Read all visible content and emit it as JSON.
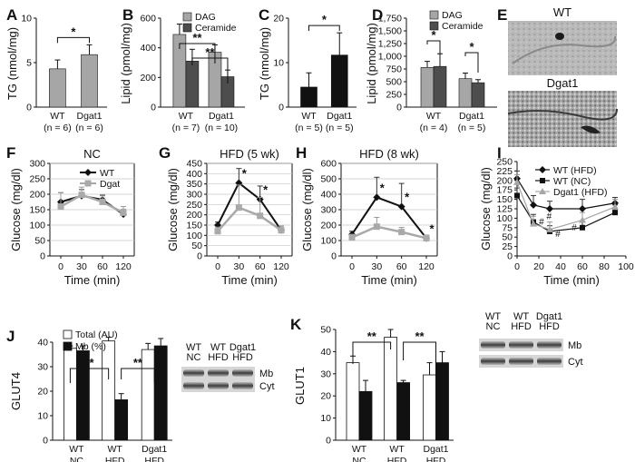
{
  "colors": {
    "gray": "#a6a6a6",
    "dark": "#4d4d4d",
    "black": "#111111",
    "white": "#ffffff",
    "line_gray": "#a9a9a9"
  },
  "panels": {
    "A": {
      "label": "A",
      "ylabel": "TG (nmol/mg)",
      "yticks": [
        "0",
        "5",
        "10"
      ],
      "categories": [
        [
          "WT",
          "(n = 6)"
        ],
        [
          "Dgat1",
          "(n = 6)"
        ]
      ],
      "sig": "*"
    },
    "B": {
      "label": "B",
      "ylabel": "Lipid (pmol/mg)",
      "yticks": [
        "0",
        "200",
        "400",
        "600"
      ],
      "categories": [
        [
          "WT",
          "(n = 7)"
        ],
        [
          "Dgat1",
          "(n = 10)"
        ]
      ],
      "legend": [
        "DAG",
        "Ceramide"
      ],
      "sig": [
        "**",
        "**"
      ]
    },
    "C": {
      "label": "C",
      "ylabel": "TG (nmol/mg)",
      "yticks": [
        "0",
        "10",
        "20"
      ],
      "categories": [
        [
          "WT",
          "(n = 5)"
        ],
        [
          "Dgat1",
          "(n = 5)"
        ]
      ],
      "sig": "*"
    },
    "D": {
      "label": "D",
      "ylabel": "Lipid (pmol/mg)",
      "yticks": [
        "0",
        "250",
        "500",
        "750",
        "1,000",
        "1,250",
        "1,500",
        "1,750"
      ],
      "categories": [
        [
          "WT",
          "(n = 4)"
        ],
        [
          "Dgat1",
          "(n = 5)"
        ]
      ],
      "legend": [
        "DAG",
        "Ceramide"
      ],
      "sig": [
        "*",
        "*"
      ]
    },
    "E": {
      "label": "E",
      "title_top": "WT",
      "title_bottom": "Dgat1"
    },
    "F": {
      "label": "F",
      "title": "NC",
      "ylabel": "Glucose (mg/dl)",
      "xlabel": "Time (min)",
      "yticks": [
        "0",
        "50",
        "100",
        "150",
        "200",
        "250",
        "300"
      ],
      "xticks": [
        "0",
        "30",
        "60",
        "120"
      ],
      "legend": [
        "WT",
        "Dgat"
      ]
    },
    "G": {
      "label": "G",
      "title": "HFD (5 wk)",
      "ylabel": "Glucose (mg/dl)",
      "xlabel": "Time (min)",
      "yticks": [
        "0",
        "50",
        "100",
        "150",
        "200",
        "250",
        "300",
        "350",
        "400",
        "450"
      ],
      "xticks": [
        "0",
        "30",
        "60",
        "120"
      ]
    },
    "H": {
      "label": "H",
      "title": "HFD (8 wk)",
      "ylabel": "Glucose (mg/dl)",
      "xlabel": "Time (min)",
      "yticks": [
        "0",
        "100",
        "200",
        "300",
        "400",
        "500",
        "600"
      ],
      "xticks": [
        "0",
        "30",
        "60",
        "120"
      ]
    },
    "I": {
      "label": "I",
      "ylabel": "Glucose (mg/dl)",
      "xlabel": "Time (min)",
      "yticks": [
        "0",
        "25",
        "50",
        "75",
        "100",
        "125",
        "150",
        "175",
        "200",
        "225",
        "250"
      ],
      "xticks": [
        "0",
        "20",
        "40",
        "60",
        "80",
        "100"
      ],
      "legend": [
        "WT (HFD)",
        "WT (NC)",
        "Dgat1 (HFD)"
      ],
      "sig": "#"
    },
    "J": {
      "label": "J",
      "ylabel": "GLUT4",
      "yticks": [
        "0",
        "10",
        "20",
        "30",
        "40"
      ],
      "categories": [
        [
          "WT",
          "NC"
        ],
        [
          "WT",
          "HFD"
        ],
        [
          "Dgat1",
          "HFD"
        ]
      ],
      "legend": [
        "Total (AU)",
        "Mb (%)"
      ],
      "sig": [
        "**",
        "**"
      ],
      "blot_lanes": [
        [
          "WT",
          "NC"
        ],
        [
          "WT",
          "HFD"
        ],
        [
          "Dgat1",
          "HFD"
        ]
      ],
      "blot_rows": [
        "Mb",
        "Cyt"
      ]
    },
    "K": {
      "label": "K",
      "ylabel": "GLUT1",
      "yticks": [
        "0",
        "10",
        "20",
        "30",
        "40",
        "50"
      ],
      "categories": [
        [
          "WT",
          "NC"
        ],
        [
          "WT",
          "HFD"
        ],
        [
          "Dgat1",
          "HFD"
        ]
      ],
      "sig": [
        "**",
        "**"
      ],
      "blot_lanes": [
        [
          "WT",
          "NC"
        ],
        [
          "WT",
          "HFD"
        ],
        [
          "Dgat1",
          "HFD"
        ]
      ],
      "blot_rows": [
        "Mb",
        "Cyt"
      ]
    }
  },
  "chart_data": [
    {
      "panel": "A",
      "type": "bar",
      "categories": [
        "WT",
        "Dgat1"
      ],
      "values": [
        4.3,
        5.9
      ],
      "errors": [
        1.0,
        1.1
      ],
      "ylim": [
        0,
        10
      ],
      "ylabel": "TG (nmol/mg)"
    },
    {
      "panel": "B",
      "type": "bar",
      "categories": [
        "WT",
        "Dgat1"
      ],
      "ylim": [
        0,
        600
      ],
      "ylabel": "Lipid (pmol/mg)",
      "series": [
        {
          "name": "DAG",
          "values": [
            490,
            370
          ],
          "errors": [
            70,
            50
          ]
        },
        {
          "name": "Ceramide",
          "values": [
            310,
            205
          ],
          "errors": [
            80,
            45
          ]
        }
      ]
    },
    {
      "panel": "C",
      "type": "bar",
      "categories": [
        "WT",
        "Dgat1"
      ],
      "values": [
        4.5,
        11.7
      ],
      "errors": [
        3.2,
        5.0
      ],
      "ylim": [
        0,
        20
      ],
      "ylabel": "TG (nmol/mg)"
    },
    {
      "panel": "D",
      "type": "bar",
      "categories": [
        "WT",
        "Dgat1"
      ],
      "ylim": [
        0,
        1750
      ],
      "ylabel": "Lipid (pmol/mg)",
      "series": [
        {
          "name": "DAG",
          "values": [
            780,
            560
          ],
          "errors": [
            120,
            110
          ]
        },
        {
          "name": "Ceramide",
          "values": [
            800,
            480
          ],
          "errors": [
            250,
            60
          ]
        }
      ]
    },
    {
      "panel": "F",
      "type": "line",
      "x": [
        0,
        30,
        60,
        120
      ],
      "ylim": [
        0,
        300
      ],
      "title": "NC",
      "xlabel": "Time (min)",
      "ylabel": "Glucose (mg/dl)",
      "series": [
        {
          "name": "WT",
          "values": [
            175,
            195,
            182,
            135
          ],
          "errors": [
            30,
            20,
            15,
            15
          ]
        },
        {
          "name": "Dgat",
          "values": [
            160,
            198,
            175,
            140
          ],
          "errors": [
            45,
            25,
            20,
            20
          ]
        }
      ]
    },
    {
      "panel": "G",
      "type": "line",
      "x": [
        0,
        30,
        60,
        120
      ],
      "ylim": [
        0,
        450
      ],
      "title": "HFD (5 wk)",
      "xlabel": "Time (min)",
      "ylabel": "Glucose (mg/dl)",
      "series": [
        {
          "values": [
            150,
            355,
            275,
            125
          ],
          "errors": [
            15,
            70,
            65,
            20
          ]
        },
        {
          "values": [
            120,
            235,
            195,
            125
          ],
          "errors": [
            20,
            110,
            90,
            20
          ]
        }
      ],
      "annotations": [
        "*",
        "*"
      ]
    },
    {
      "panel": "H",
      "type": "line",
      "x": [
        0,
        30,
        60,
        120
      ],
      "ylim": [
        0,
        600
      ],
      "title": "HFD (8 wk)",
      "xlabel": "Time (min)",
      "ylabel": "Glucose (mg/dl)",
      "series": [
        {
          "values": [
            140,
            380,
            320,
            115
          ],
          "errors": [
            20,
            130,
            150,
            20
          ]
        },
        {
          "values": [
            120,
            190,
            155,
            115
          ],
          "errors": [
            20,
            60,
            30,
            20
          ]
        }
      ],
      "annotations": [
        "*",
        "*",
        "*"
      ]
    },
    {
      "panel": "I",
      "type": "line",
      "xlim": [
        0,
        100
      ],
      "ylim": [
        0,
        250
      ],
      "xlabel": "Time (min)",
      "ylabel": "Glucose (mg/dl)",
      "series": [
        {
          "name": "WT (HFD)",
          "x": [
            0,
            15,
            30,
            60,
            90
          ],
          "values": [
            205,
            135,
            125,
            125,
            140
          ],
          "errors": [
            20,
            25,
            20,
            25,
            15
          ]
        },
        {
          "name": "WT (NC)",
          "x": [
            0,
            15,
            30,
            60,
            90
          ],
          "values": [
            160,
            90,
            65,
            75,
            115
          ],
          "errors": [
            20,
            20,
            15,
            15,
            20
          ]
        },
        {
          "name": "Dgat1 (HFD)",
          "x": [
            0,
            15,
            30,
            60,
            90
          ],
          "values": [
            195,
            85,
            70,
            95,
            130
          ],
          "errors": [
            20,
            20,
            20,
            20,
            20
          ]
        }
      ],
      "annotations": [
        "#",
        "#",
        "#",
        "#"
      ]
    },
    {
      "panel": "J",
      "type": "bar",
      "categories": [
        "WT NC",
        "WT HFD",
        "Dgat1 HFD"
      ],
      "ylim": [
        0,
        40
      ],
      "ylabel": "GLUT4",
      "series": [
        {
          "name": "Total (AU)",
          "values": [
            37.5,
            40.5,
            37
          ],
          "errors": [
            1,
            1.5,
            2.5
          ]
        },
        {
          "name": "Mb (%)",
          "values": [
            36.5,
            16.5,
            38.5
          ],
          "errors": [
            2,
            2.5,
            3
          ]
        }
      ]
    },
    {
      "panel": "K",
      "type": "bar",
      "categories": [
        "WT NC",
        "WT HFD",
        "Dgat1 HFD"
      ],
      "ylim": [
        0,
        50
      ],
      "ylabel": "GLUT1",
      "series": [
        {
          "values": [
            35,
            46.5,
            29.5
          ],
          "errors": [
            3,
            3.5,
            5.5
          ]
        },
        {
          "values": [
            22,
            26,
            35
          ],
          "errors": [
            5,
            1,
            5
          ]
        }
      ]
    }
  ]
}
